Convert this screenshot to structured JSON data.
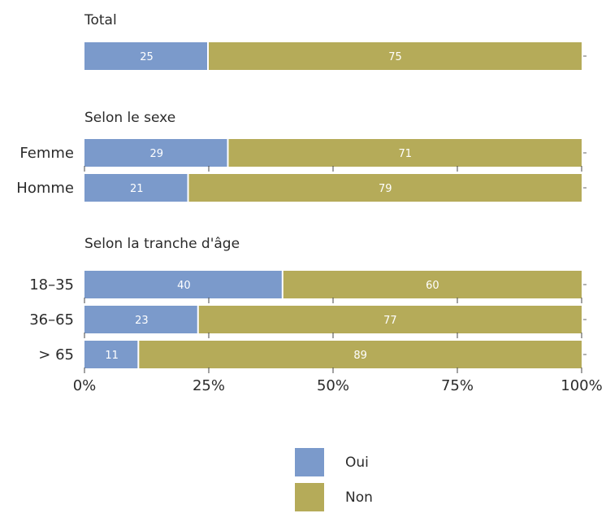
{
  "chart_data": {
    "type": "bar",
    "orientation": "horizontal",
    "stacked": true,
    "normalized_percent": true,
    "xlim": [
      0,
      100
    ],
    "x_ticks": [
      "0%",
      "25%",
      "50%",
      "75%",
      "100%"
    ],
    "groups": [
      {
        "title": "Total",
        "rows": [
          {
            "label": "",
            "values": [
              25,
              75
            ]
          }
        ]
      },
      {
        "title": "Selon le sexe",
        "rows": [
          {
            "label": "Femme",
            "values": [
              29,
              71
            ]
          },
          {
            "label": "Homme",
            "values": [
              21,
              79
            ]
          }
        ]
      },
      {
        "title": "Selon la tranche d'âge",
        "rows": [
          {
            "label": "18–35",
            "values": [
              40,
              60
            ]
          },
          {
            "label": "36–65",
            "values": [
              23,
              77
            ]
          },
          {
            "label": "> 65",
            "values": [
              11,
              89
            ]
          }
        ]
      }
    ],
    "series": [
      {
        "name": "Oui",
        "color": "#7b9acb"
      },
      {
        "name": "Non",
        "color": "#b5ab59"
      }
    ],
    "legend": {
      "position": "bottom-center"
    },
    "grid": false
  }
}
